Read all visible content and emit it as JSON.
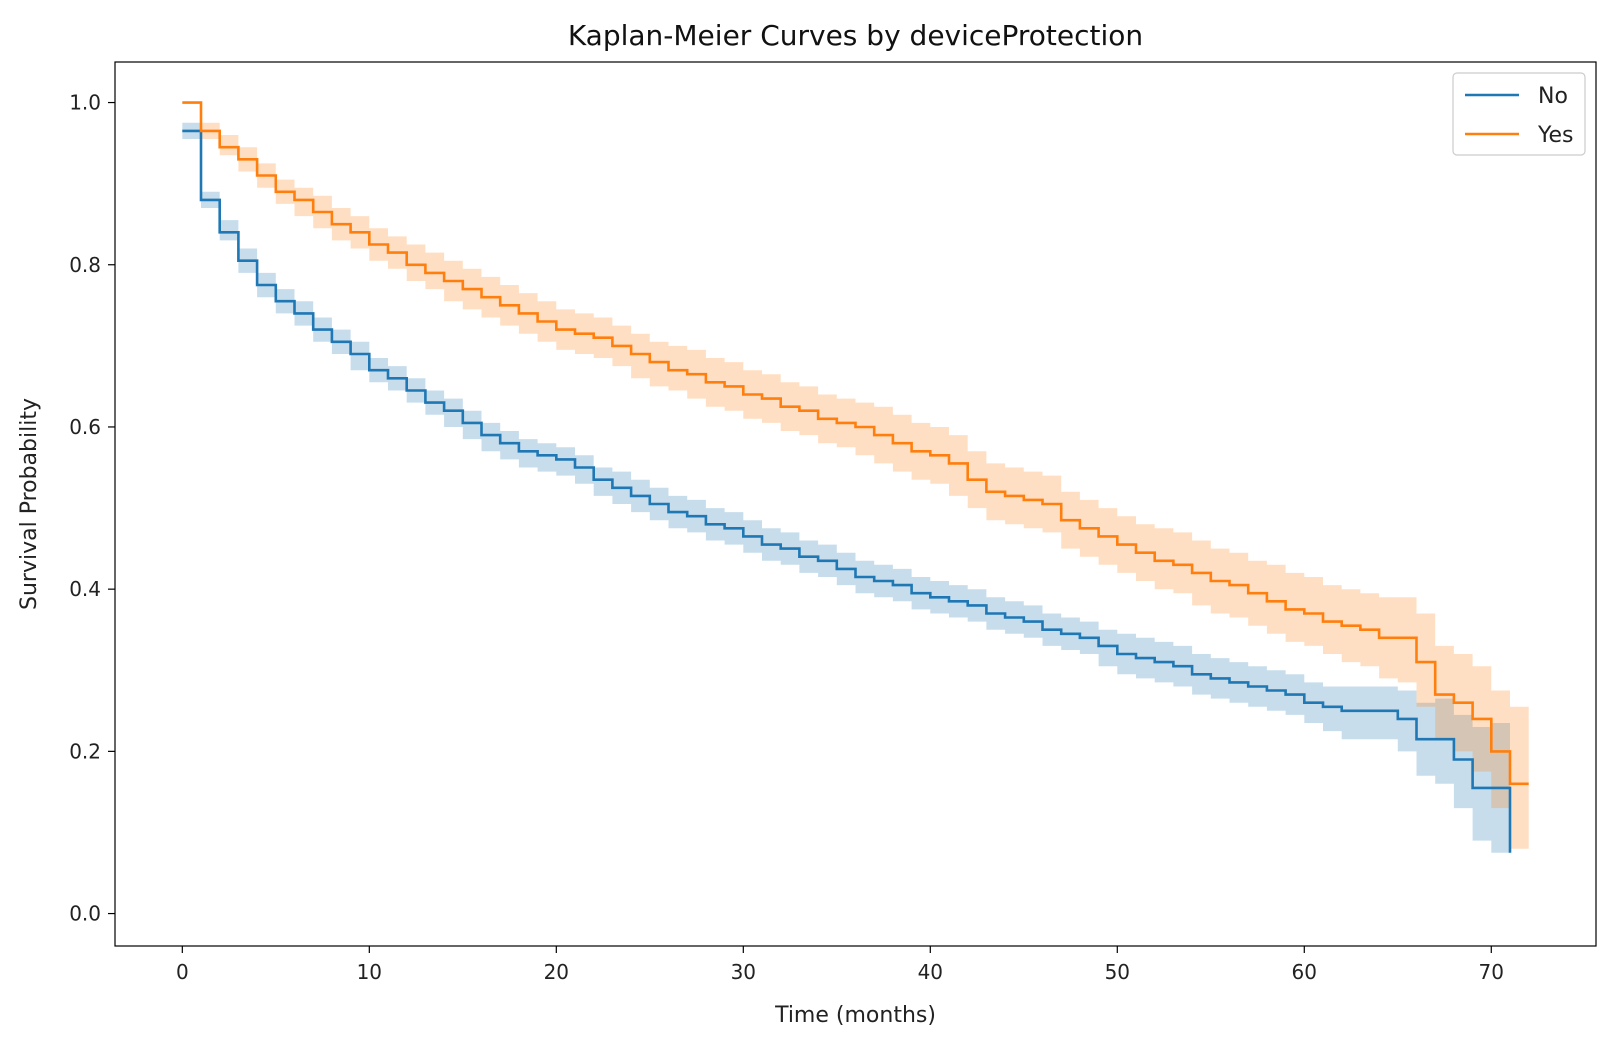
{
  "chart_data": {
    "type": "line",
    "step": true,
    "title": "Kaplan-Meier Curves by deviceProtection",
    "xlabel": "Time (months)",
    "ylabel": "Survival Probability",
    "xlim": [
      -3.6,
      75.6
    ],
    "ylim": [
      -0.04,
      1.05
    ],
    "xticks": [
      0,
      10,
      20,
      30,
      40,
      50,
      60,
      70
    ],
    "yticks": [
      0.0,
      0.2,
      0.4,
      0.6,
      0.8,
      1.0
    ],
    "ytick_labels": [
      "0.0",
      "0.2",
      "0.4",
      "0.6",
      "0.8",
      "1.0"
    ],
    "grid": false,
    "legend_position": "top-right",
    "confidence_band": true,
    "series": [
      {
        "name": "No",
        "color": "#1f77b4",
        "x": [
          0,
          1,
          2,
          3,
          4,
          5,
          6,
          7,
          8,
          9,
          10,
          11,
          12,
          13,
          14,
          15,
          16,
          17,
          18,
          19,
          20,
          21,
          22,
          23,
          24,
          25,
          26,
          27,
          28,
          29,
          30,
          31,
          32,
          33,
          34,
          35,
          36,
          37,
          38,
          39,
          40,
          41,
          42,
          43,
          44,
          45,
          46,
          47,
          48,
          49,
          50,
          51,
          52,
          53,
          54,
          55,
          56,
          57,
          58,
          59,
          60,
          61,
          62,
          63,
          64,
          65,
          66,
          67,
          68,
          69,
          70,
          71
        ],
        "y": [
          0.965,
          0.88,
          0.84,
          0.805,
          0.775,
          0.755,
          0.74,
          0.72,
          0.705,
          0.69,
          0.67,
          0.66,
          0.645,
          0.63,
          0.62,
          0.605,
          0.59,
          0.58,
          0.57,
          0.565,
          0.56,
          0.55,
          0.535,
          0.525,
          0.515,
          0.505,
          0.495,
          0.49,
          0.48,
          0.475,
          0.465,
          0.455,
          0.45,
          0.44,
          0.435,
          0.425,
          0.415,
          0.41,
          0.405,
          0.395,
          0.39,
          0.385,
          0.38,
          0.37,
          0.365,
          0.36,
          0.35,
          0.345,
          0.34,
          0.33,
          0.32,
          0.315,
          0.31,
          0.305,
          0.295,
          0.29,
          0.285,
          0.28,
          0.275,
          0.27,
          0.26,
          0.255,
          0.25,
          0.25,
          0.25,
          0.24,
          0.215,
          0.215,
          0.19,
          0.155,
          0.155,
          0.075
        ],
        "lower": [
          0.955,
          0.87,
          0.83,
          0.79,
          0.76,
          0.74,
          0.725,
          0.705,
          0.69,
          0.67,
          0.655,
          0.645,
          0.63,
          0.615,
          0.6,
          0.585,
          0.57,
          0.56,
          0.55,
          0.545,
          0.54,
          0.53,
          0.515,
          0.505,
          0.495,
          0.485,
          0.475,
          0.47,
          0.46,
          0.455,
          0.445,
          0.435,
          0.43,
          0.42,
          0.415,
          0.405,
          0.395,
          0.39,
          0.385,
          0.375,
          0.37,
          0.365,
          0.36,
          0.35,
          0.345,
          0.34,
          0.33,
          0.325,
          0.32,
          0.305,
          0.295,
          0.29,
          0.285,
          0.28,
          0.27,
          0.265,
          0.26,
          0.255,
          0.25,
          0.245,
          0.235,
          0.225,
          0.215,
          0.215,
          0.215,
          0.2,
          0.17,
          0.16,
          0.13,
          0.09,
          0.075,
          0.01
        ],
        "upper": [
          0.975,
          0.89,
          0.855,
          0.82,
          0.79,
          0.77,
          0.755,
          0.735,
          0.72,
          0.705,
          0.685,
          0.675,
          0.66,
          0.645,
          0.635,
          0.62,
          0.605,
          0.595,
          0.585,
          0.58,
          0.575,
          0.565,
          0.55,
          0.545,
          0.535,
          0.525,
          0.515,
          0.51,
          0.5,
          0.495,
          0.485,
          0.475,
          0.47,
          0.46,
          0.455,
          0.445,
          0.435,
          0.43,
          0.425,
          0.415,
          0.41,
          0.405,
          0.4,
          0.39,
          0.385,
          0.38,
          0.37,
          0.365,
          0.36,
          0.35,
          0.345,
          0.34,
          0.335,
          0.33,
          0.32,
          0.315,
          0.31,
          0.305,
          0.3,
          0.295,
          0.285,
          0.28,
          0.28,
          0.28,
          0.28,
          0.275,
          0.26,
          0.265,
          0.245,
          0.23,
          0.235,
          0.23
        ]
      },
      {
        "name": "Yes",
        "color": "#ff7f0e",
        "x": [
          0,
          1,
          2,
          3,
          4,
          5,
          6,
          7,
          8,
          9,
          10,
          11,
          12,
          13,
          14,
          15,
          16,
          17,
          18,
          19,
          20,
          21,
          22,
          23,
          24,
          25,
          26,
          27,
          28,
          29,
          30,
          31,
          32,
          33,
          34,
          35,
          36,
          37,
          38,
          39,
          40,
          41,
          42,
          43,
          44,
          45,
          46,
          47,
          48,
          49,
          50,
          51,
          52,
          53,
          54,
          55,
          56,
          57,
          58,
          59,
          60,
          61,
          62,
          63,
          64,
          65,
          66,
          67,
          68,
          69,
          70,
          71,
          72
        ],
        "y": [
          1.0,
          0.965,
          0.945,
          0.93,
          0.91,
          0.89,
          0.88,
          0.865,
          0.85,
          0.84,
          0.825,
          0.815,
          0.8,
          0.79,
          0.78,
          0.77,
          0.76,
          0.75,
          0.74,
          0.73,
          0.72,
          0.715,
          0.71,
          0.7,
          0.69,
          0.68,
          0.67,
          0.665,
          0.655,
          0.65,
          0.64,
          0.635,
          0.625,
          0.62,
          0.61,
          0.605,
          0.6,
          0.59,
          0.58,
          0.57,
          0.565,
          0.555,
          0.535,
          0.52,
          0.515,
          0.51,
          0.505,
          0.485,
          0.475,
          0.465,
          0.455,
          0.445,
          0.435,
          0.43,
          0.42,
          0.41,
          0.405,
          0.395,
          0.385,
          0.375,
          0.37,
          0.36,
          0.355,
          0.35,
          0.34,
          0.34,
          0.31,
          0.27,
          0.26,
          0.24,
          0.2,
          0.16,
          0.16
        ],
        "lower": [
          1.0,
          0.955,
          0.935,
          0.915,
          0.895,
          0.875,
          0.86,
          0.845,
          0.83,
          0.82,
          0.805,
          0.795,
          0.78,
          0.77,
          0.755,
          0.745,
          0.735,
          0.725,
          0.715,
          0.705,
          0.695,
          0.69,
          0.685,
          0.675,
          0.66,
          0.65,
          0.645,
          0.635,
          0.625,
          0.62,
          0.61,
          0.605,
          0.595,
          0.59,
          0.58,
          0.575,
          0.565,
          0.555,
          0.545,
          0.535,
          0.53,
          0.515,
          0.5,
          0.485,
          0.48,
          0.475,
          0.47,
          0.45,
          0.44,
          0.43,
          0.42,
          0.41,
          0.4,
          0.395,
          0.38,
          0.37,
          0.365,
          0.355,
          0.345,
          0.335,
          0.33,
          0.32,
          0.31,
          0.305,
          0.29,
          0.285,
          0.255,
          0.215,
          0.2,
          0.175,
          0.13,
          0.08,
          0.08
        ],
        "upper": [
          1.0,
          0.975,
          0.96,
          0.945,
          0.925,
          0.905,
          0.895,
          0.885,
          0.87,
          0.86,
          0.845,
          0.835,
          0.825,
          0.815,
          0.805,
          0.795,
          0.785,
          0.775,
          0.765,
          0.755,
          0.745,
          0.74,
          0.735,
          0.725,
          0.715,
          0.705,
          0.7,
          0.695,
          0.685,
          0.68,
          0.67,
          0.665,
          0.655,
          0.65,
          0.64,
          0.635,
          0.63,
          0.625,
          0.615,
          0.605,
          0.6,
          0.59,
          0.57,
          0.555,
          0.55,
          0.545,
          0.54,
          0.52,
          0.51,
          0.5,
          0.49,
          0.48,
          0.475,
          0.47,
          0.46,
          0.45,
          0.445,
          0.435,
          0.43,
          0.42,
          0.415,
          0.405,
          0.4,
          0.395,
          0.39,
          0.39,
          0.37,
          0.33,
          0.32,
          0.305,
          0.275,
          0.255,
          0.255
        ]
      }
    ]
  }
}
